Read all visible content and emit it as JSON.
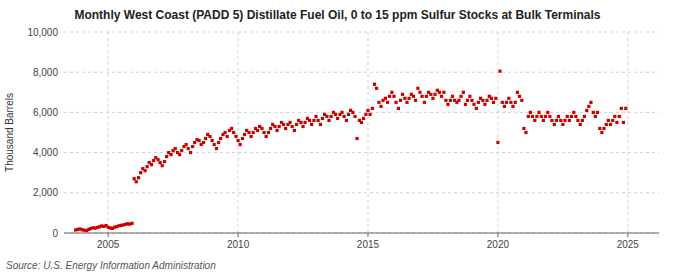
{
  "chart_data": {
    "type": "scatter",
    "title": "Monthly West Coast (PADD 5) Distillate Fuel Oil, 0 to 15 ppm Sulfur Stocks at Bulk Terminals",
    "ylabel": "Thousand Barrels",
    "annotations": [
      "Source: U.S. Energy Information Administration"
    ],
    "color": "#cc0000",
    "marker": "square",
    "grid": true,
    "xlim": [
      2003.3,
      2026.2
    ],
    "xticks": [
      2005,
      2010,
      2015,
      2020,
      2025
    ],
    "ylim": [
      0,
      10000
    ],
    "yticks": [
      0,
      {
        "value": 2000,
        "label": "2,000"
      },
      {
        "value": 4000,
        "label": "4,000"
      },
      {
        "value": 6000,
        "label": "6,000"
      },
      {
        "value": 8000,
        "label": "8,000"
      },
      {
        "value": 10000,
        "label": "10,000"
      }
    ],
    "x": [
      2003.75,
      2003.83,
      2003.92,
      2004.0,
      2004.08,
      2004.17,
      2004.25,
      2004.33,
      2004.42,
      2004.5,
      2004.58,
      2004.67,
      2004.75,
      2004.83,
      2004.92,
      2005.0,
      2005.08,
      2005.17,
      2005.25,
      2005.33,
      2005.42,
      2005.5,
      2005.58,
      2005.67,
      2005.75,
      2005.83,
      2005.92,
      2006.0,
      2006.08,
      2006.17,
      2006.25,
      2006.33,
      2006.42,
      2006.5,
      2006.58,
      2006.67,
      2006.75,
      2006.83,
      2006.92,
      2007.0,
      2007.08,
      2007.17,
      2007.25,
      2007.33,
      2007.42,
      2007.5,
      2007.58,
      2007.67,
      2007.75,
      2007.83,
      2007.92,
      2008.0,
      2008.08,
      2008.17,
      2008.25,
      2008.33,
      2008.42,
      2008.5,
      2008.58,
      2008.67,
      2008.75,
      2008.83,
      2008.92,
      2009.0,
      2009.08,
      2009.17,
      2009.25,
      2009.33,
      2009.42,
      2009.5,
      2009.58,
      2009.67,
      2009.75,
      2009.83,
      2009.92,
      2010.0,
      2010.08,
      2010.17,
      2010.25,
      2010.33,
      2010.42,
      2010.5,
      2010.58,
      2010.67,
      2010.75,
      2010.83,
      2010.92,
      2011.0,
      2011.08,
      2011.17,
      2011.25,
      2011.33,
      2011.42,
      2011.5,
      2011.58,
      2011.67,
      2011.75,
      2011.83,
      2011.92,
      2012.0,
      2012.08,
      2012.17,
      2012.25,
      2012.33,
      2012.42,
      2012.5,
      2012.58,
      2012.67,
      2012.75,
      2012.83,
      2012.92,
      2013.0,
      2013.08,
      2013.17,
      2013.25,
      2013.33,
      2013.42,
      2013.5,
      2013.58,
      2013.67,
      2013.75,
      2013.83,
      2013.92,
      2014.0,
      2014.08,
      2014.17,
      2014.25,
      2014.33,
      2014.42,
      2014.5,
      2014.58,
      2014.67,
      2014.75,
      2014.83,
      2014.92,
      2015.0,
      2015.08,
      2015.17,
      2015.25,
      2015.33,
      2015.42,
      2015.5,
      2015.58,
      2015.67,
      2015.75,
      2015.83,
      2015.92,
      2016.0,
      2016.08,
      2016.17,
      2016.25,
      2016.33,
      2016.42,
      2016.5,
      2016.58,
      2016.67,
      2016.75,
      2016.83,
      2016.92,
      2017.0,
      2017.08,
      2017.17,
      2017.25,
      2017.33,
      2017.42,
      2017.5,
      2017.58,
      2017.67,
      2017.75,
      2017.83,
      2017.92,
      2018.0,
      2018.08,
      2018.17,
      2018.25,
      2018.33,
      2018.42,
      2018.5,
      2018.58,
      2018.67,
      2018.75,
      2018.83,
      2018.92,
      2019.0,
      2019.08,
      2019.17,
      2019.25,
      2019.33,
      2019.42,
      2019.5,
      2019.58,
      2019.67,
      2019.75,
      2019.83,
      2019.92,
      2020.0,
      2020.08,
      2020.17,
      2020.25,
      2020.33,
      2020.42,
      2020.5,
      2020.58,
      2020.67,
      2020.75,
      2020.83,
      2020.92,
      2021.0,
      2021.08,
      2021.17,
      2021.25,
      2021.33,
      2021.42,
      2021.5,
      2021.58,
      2021.67,
      2021.75,
      2021.83,
      2021.92,
      2022.0,
      2022.08,
      2022.17,
      2022.25,
      2022.33,
      2022.42,
      2022.5,
      2022.58,
      2022.67,
      2022.75,
      2022.83,
      2022.92,
      2023.0,
      2023.08,
      2023.17,
      2023.25,
      2023.33,
      2023.42,
      2023.5,
      2023.58,
      2023.67,
      2023.75,
      2023.83,
      2023.92,
      2024.0,
      2024.08,
      2024.17,
      2024.25,
      2024.33,
      2024.42,
      2024.5,
      2024.58,
      2024.67,
      2024.75,
      2024.83,
      2024.92
    ],
    "values": [
      150,
      180,
      200,
      160,
      140,
      120,
      180,
      220,
      260,
      240,
      280,
      310,
      350,
      330,
      370,
      280,
      250,
      230,
      290,
      320,
      360,
      380,
      400,
      430,
      460,
      440,
      480,
      2700,
      2550,
      2750,
      3000,
      3200,
      3100,
      3300,
      3500,
      3400,
      3600,
      3750,
      3650,
      3500,
      3350,
      3550,
      3800,
      4000,
      3900,
      4100,
      4200,
      4000,
      3900,
      4100,
      4300,
      4400,
      4200,
      4000,
      4300,
      4500,
      4650,
      4600,
      4400,
      4500,
      4700,
      4900,
      4800,
      4600,
      4400,
      4200,
      4500,
      4700,
      4900,
      5000,
      4800,
      5100,
      5200,
      5000,
      4800,
      4600,
      4400,
      4700,
      4900,
      5100,
      5000,
      4800,
      5000,
      5200,
      5100,
      5300,
      5200,
      5000,
      4800,
      5000,
      5200,
      5400,
      5300,
      5100,
      5300,
      5500,
      5400,
      5200,
      5400,
      5500,
      5300,
      5100,
      5400,
      5600,
      5500,
      5300,
      5500,
      5700,
      5600,
      5400,
      5600,
      5800,
      5600,
      5400,
      5700,
      5900,
      5800,
      5600,
      5800,
      6000,
      5900,
      5700,
      5900,
      6000,
      5800,
      5600,
      5900,
      6100,
      6000,
      5800,
      4700,
      5600,
      5500,
      5700,
      5900,
      6100,
      5900,
      6200,
      7400,
      7200,
      6500,
      6300,
      6600,
      6700,
      6500,
      6800,
      7000,
      6800,
      6500,
      6200,
      6600,
      6900,
      6700,
      6500,
      6700,
      6900,
      6800,
      6600,
      7200,
      7000,
      6800,
      6500,
      6800,
      7000,
      6900,
      6700,
      6900,
      7100,
      7000,
      6800,
      7000,
      6600,
      6400,
      6600,
      6800,
      6600,
      6500,
      6600,
      6800,
      7000,
      6400,
      6600,
      6800,
      6600,
      6400,
      6200,
      6500,
      6700,
      6600,
      6400,
      6600,
      6800,
      6700,
      6500,
      6700,
      4500,
      8050,
      6500,
      6300,
      6500,
      6700,
      6500,
      6300,
      6500,
      7000,
      6800,
      6600,
      5200,
      5000,
      5800,
      6000,
      5800,
      5600,
      5800,
      6000,
      5800,
      5600,
      5800,
      6000,
      5800,
      5600,
      5400,
      5600,
      5800,
      5600,
      5400,
      5600,
      5800,
      5600,
      5800,
      6000,
      5800,
      5600,
      5400,
      5600,
      5800,
      6100,
      6300,
      6500,
      6000,
      5800,
      6000,
      5200,
      5000,
      5200,
      5400,
      5600,
      5400,
      5600,
      5800,
      5500,
      5800,
      6200,
      5500,
      6200
    ]
  }
}
